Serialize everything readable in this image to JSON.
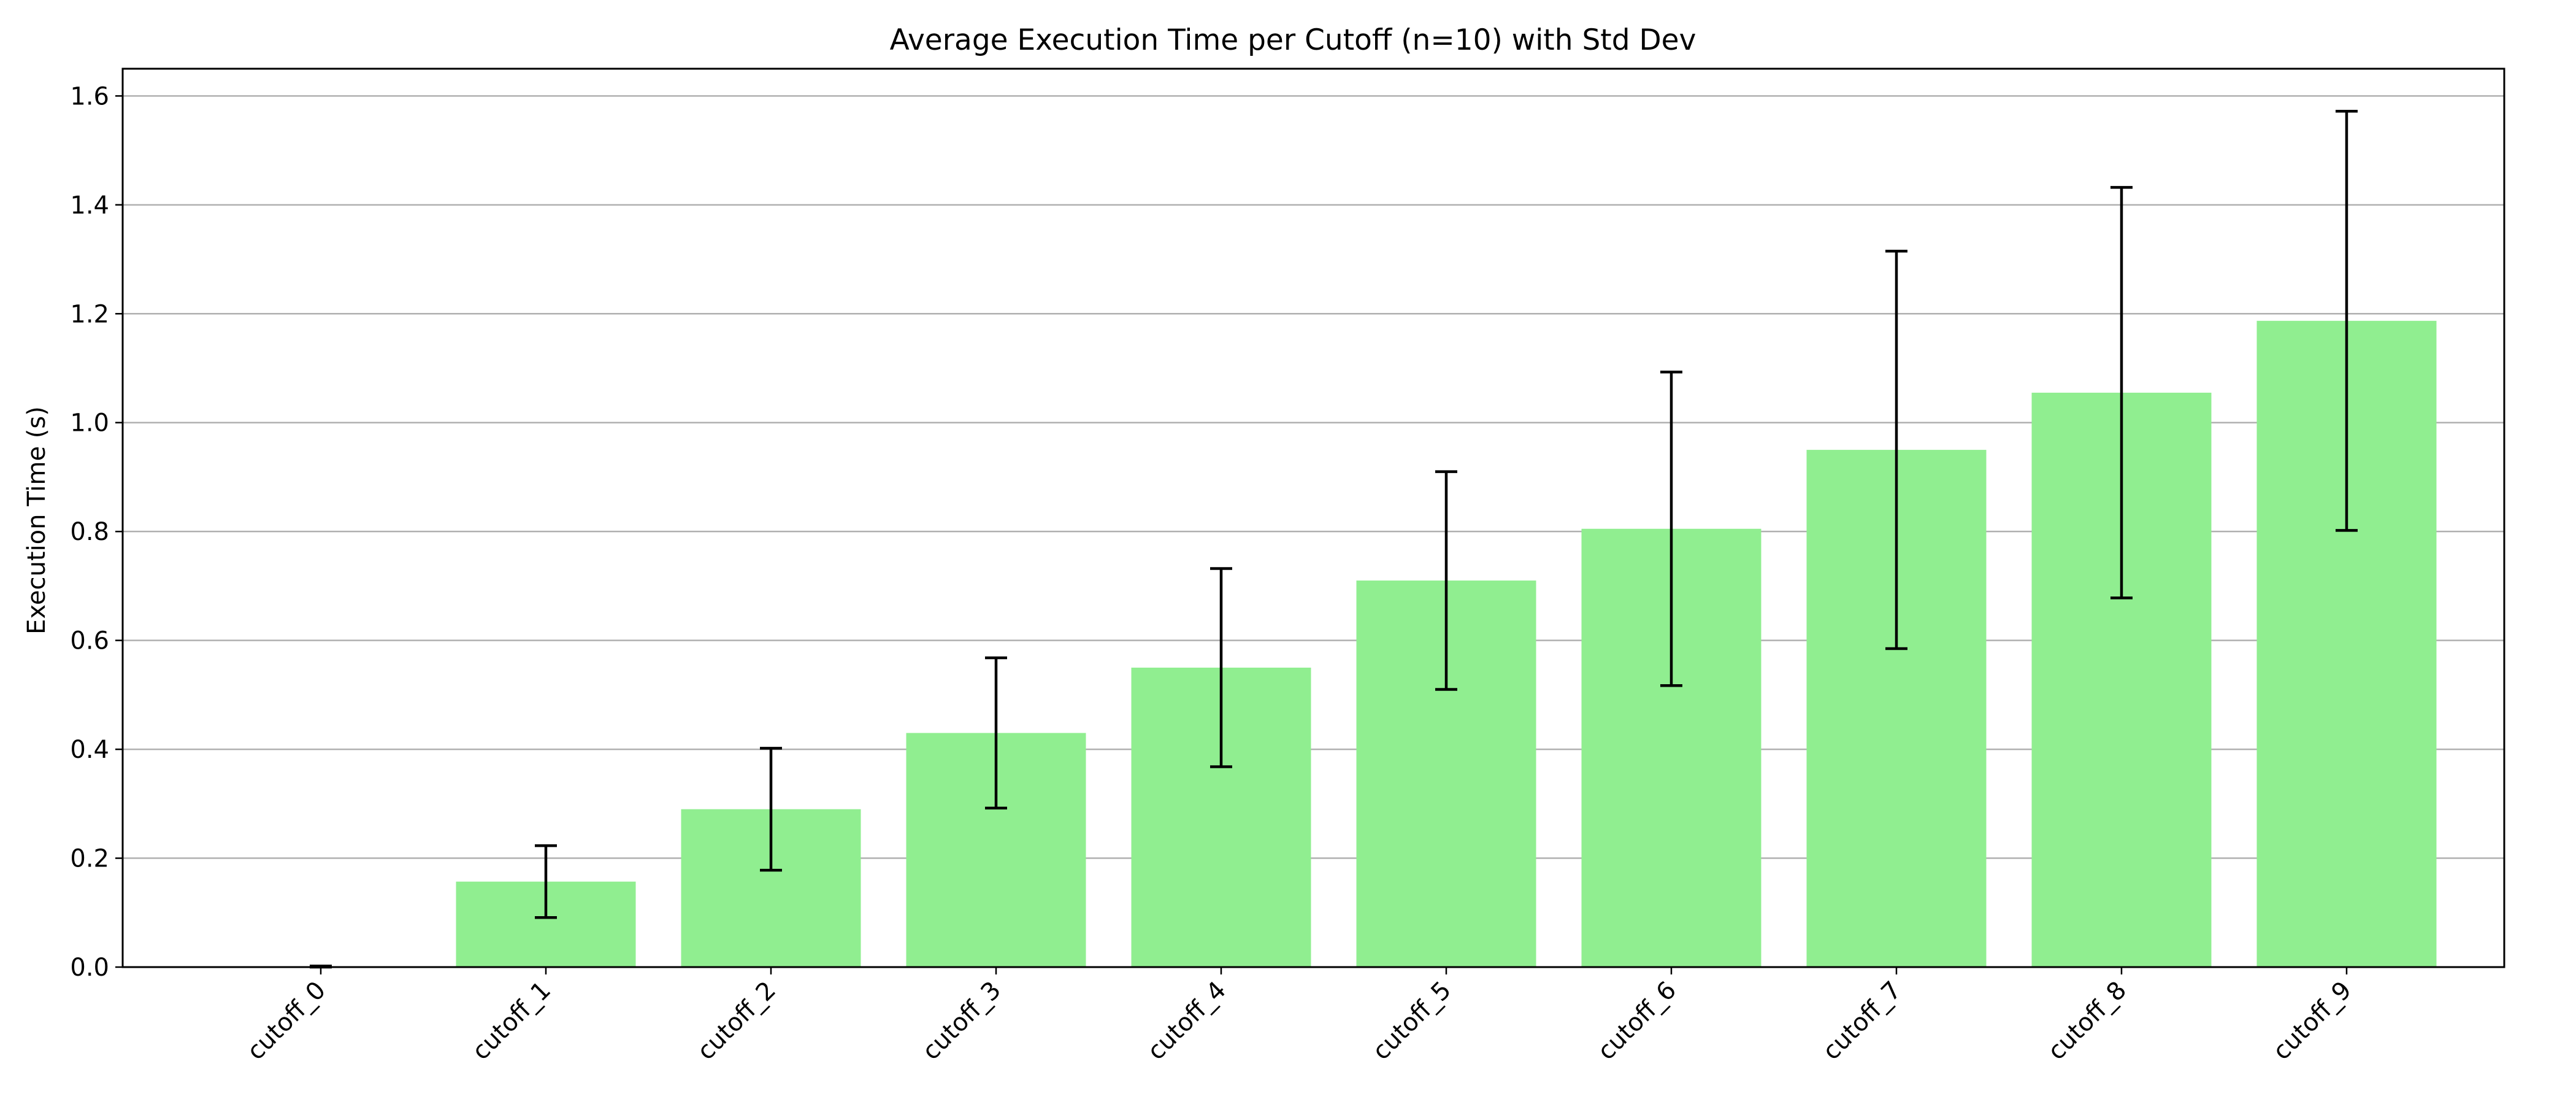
{
  "chart_data": {
    "type": "bar",
    "title": "Average Execution Time per Cutoff (n=10) with Std Dev",
    "xlabel": "",
    "ylabel": "Execution Time (s)",
    "categories": [
      "cutoff_0",
      "cutoff_1",
      "cutoff_2",
      "cutoff_3",
      "cutoff_4",
      "cutoff_5",
      "cutoff_6",
      "cutoff_7",
      "cutoff_8",
      "cutoff_9"
    ],
    "values": [
      0.001,
      0.157,
      0.29,
      0.43,
      0.55,
      0.71,
      0.805,
      0.95,
      1.055,
      1.187
    ],
    "error": [
      0.001,
      0.066,
      0.112,
      0.138,
      0.182,
      0.2,
      0.288,
      0.365,
      0.377,
      0.385
    ],
    "ylim": [
      0,
      1.65
    ],
    "yticks": [
      "0.0",
      "0.2",
      "0.4",
      "0.6",
      "0.8",
      "1.0",
      "1.2",
      "1.4",
      "1.6"
    ],
    "grid": "y",
    "bar_color": "#90ee90",
    "error_color": "#000000"
  }
}
